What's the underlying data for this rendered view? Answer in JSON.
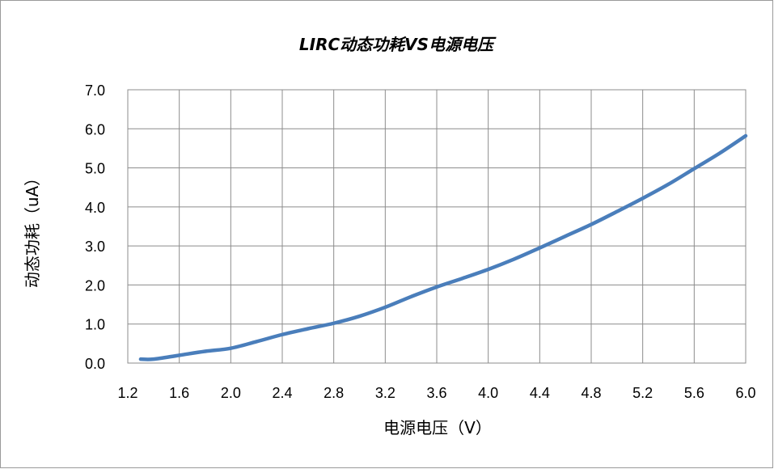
{
  "chart_data": {
    "type": "line",
    "title": "LIRC动态功耗VS电源电压",
    "xlabel": "电源电压（V）",
    "ylabel": "动态功耗（uA）",
    "xlim": [
      1.2,
      6.0
    ],
    "ylim": [
      0.0,
      7.0
    ],
    "x_ticks": [
      "1.2",
      "1.6",
      "2.0",
      "2.4",
      "2.8",
      "3.2",
      "3.6",
      "4.0",
      "4.4",
      "4.8",
      "5.2",
      "5.6",
      "6.0"
    ],
    "y_ticks": [
      "0.0",
      "1.0",
      "2.0",
      "3.0",
      "4.0",
      "5.0",
      "6.0",
      "7.0"
    ],
    "grid": true,
    "legend": "none",
    "series": [
      {
        "color": "#4a7ebb",
        "x": [
          1.3,
          1.4,
          1.6,
          1.8,
          2.0,
          2.2,
          2.4,
          2.6,
          2.8,
          3.0,
          3.2,
          3.4,
          3.6,
          3.8,
          4.0,
          4.2,
          4.4,
          4.6,
          4.8,
          5.0,
          5.2,
          5.4,
          5.6,
          5.8,
          6.0
        ],
        "y": [
          0.1,
          0.1,
          0.2,
          0.3,
          0.38,
          0.55,
          0.73,
          0.88,
          1.02,
          1.2,
          1.43,
          1.7,
          1.95,
          2.17,
          2.4,
          2.66,
          2.95,
          3.25,
          3.55,
          3.88,
          4.22,
          4.58,
          4.98,
          5.38,
          5.82
        ]
      }
    ]
  }
}
